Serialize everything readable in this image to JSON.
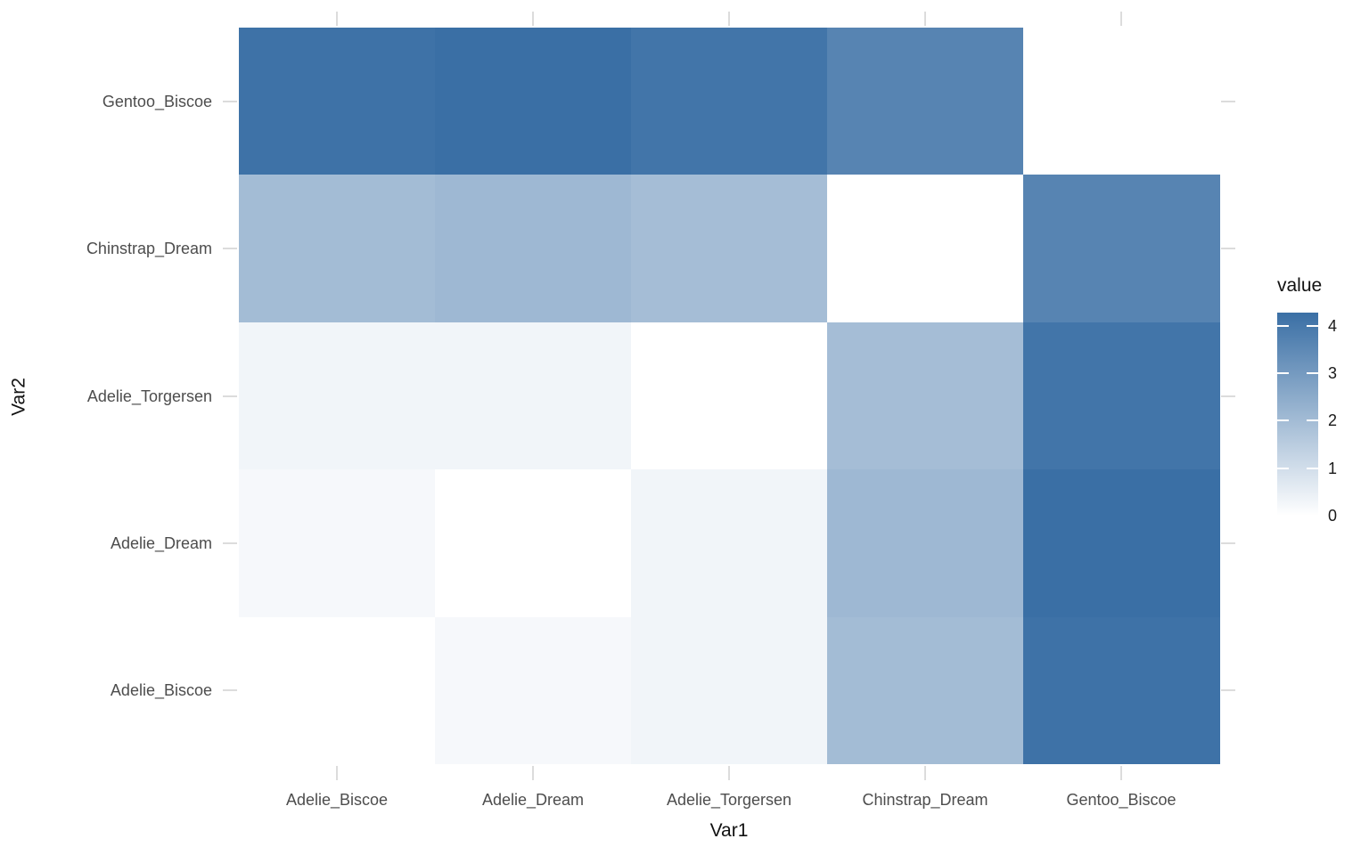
{
  "figure": {
    "background": "#ffffff",
    "axis": {
      "x_title": "Var1",
      "y_title": "Var2",
      "tick_color": "#dcdcdc",
      "tick_label_color": "#4d4d4d",
      "title_color": "#111111"
    },
    "legend": {
      "title": "value",
      "breaks": [
        4,
        3,
        2,
        1,
        0
      ],
      "high_color": "#3a6fa5",
      "low_color": "#ffffff",
      "position": "right"
    }
  },
  "chart_data": {
    "type": "heatmap",
    "title": "",
    "xlabel": "Var1",
    "ylabel": "Var2",
    "value_name": "value",
    "value_range": [
      0,
      4.28
    ],
    "grid": false,
    "legend_position": "right",
    "x_categories": [
      "Adelie_Biscoe",
      "Adelie_Dream",
      "Adelie_Torgersen",
      "Chinstrap_Dream",
      "Gentoo_Biscoe"
    ],
    "y_categories_top_to_bottom": [
      "Gentoo_Biscoe",
      "Chinstrap_Dream",
      "Adelie_Torgersen",
      "Adelie_Dream",
      "Adelie_Biscoe"
    ],
    "rows": [
      {
        "y": "Gentoo_Biscoe",
        "values": [
          4.2,
          4.28,
          4.1,
          3.65,
          0
        ]
      },
      {
        "y": "Chinstrap_Dream",
        "values": [
          2.0,
          2.1,
          1.95,
          0,
          3.65
        ]
      },
      {
        "y": "Adelie_Torgersen",
        "values": [
          0.3,
          0.3,
          0,
          1.95,
          4.1
        ]
      },
      {
        "y": "Adelie_Dream",
        "values": [
          0.2,
          0,
          0.3,
          2.1,
          4.28
        ]
      },
      {
        "y": "Adelie_Biscoe",
        "values": [
          0,
          0.2,
          0.3,
          2.0,
          4.2
        ]
      }
    ]
  }
}
